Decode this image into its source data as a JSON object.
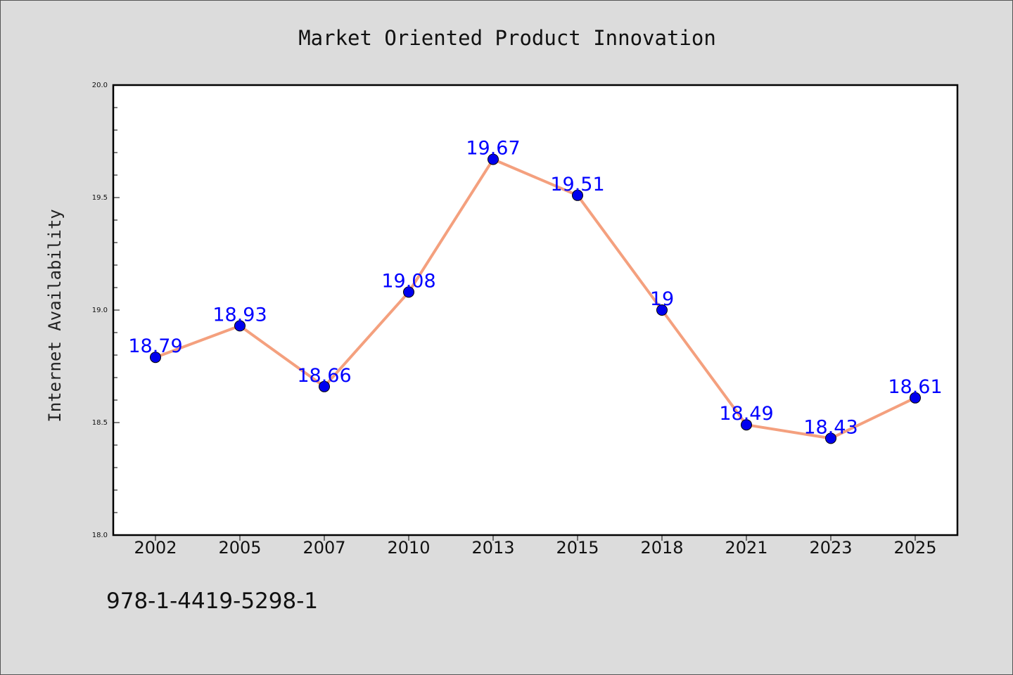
{
  "chart_data": {
    "type": "line",
    "title": "Market Oriented Product Innovation",
    "xlabel": "",
    "ylabel": "Internet Availability",
    "categories": [
      "2002",
      "2005",
      "2007",
      "2010",
      "2013",
      "2015",
      "2018",
      "2021",
      "2023",
      "2025"
    ],
    "series": [
      {
        "values": [
          18.79,
          18.93,
          18.66,
          19.08,
          19.67,
          19.51,
          19,
          18.49,
          18.43,
          18.61
        ],
        "labels": [
          "18.79",
          "18.93",
          "18.66",
          "19.08",
          "19.67",
          "19.51",
          "19",
          "18.49",
          "18.43",
          "18.61"
        ],
        "line_color": "#f4a07e",
        "marker_color": "#0000ee"
      }
    ],
    "ylim": [
      18.0,
      20.0
    ],
    "yticks": [
      "18.0",
      "18.5",
      "19.0",
      "19.5",
      "20.0"
    ],
    "grid": false,
    "background": "#dcdcdc",
    "plot_background": "#ffffff"
  },
  "footer": {
    "isbn": "978-1-4419-5298-1"
  }
}
